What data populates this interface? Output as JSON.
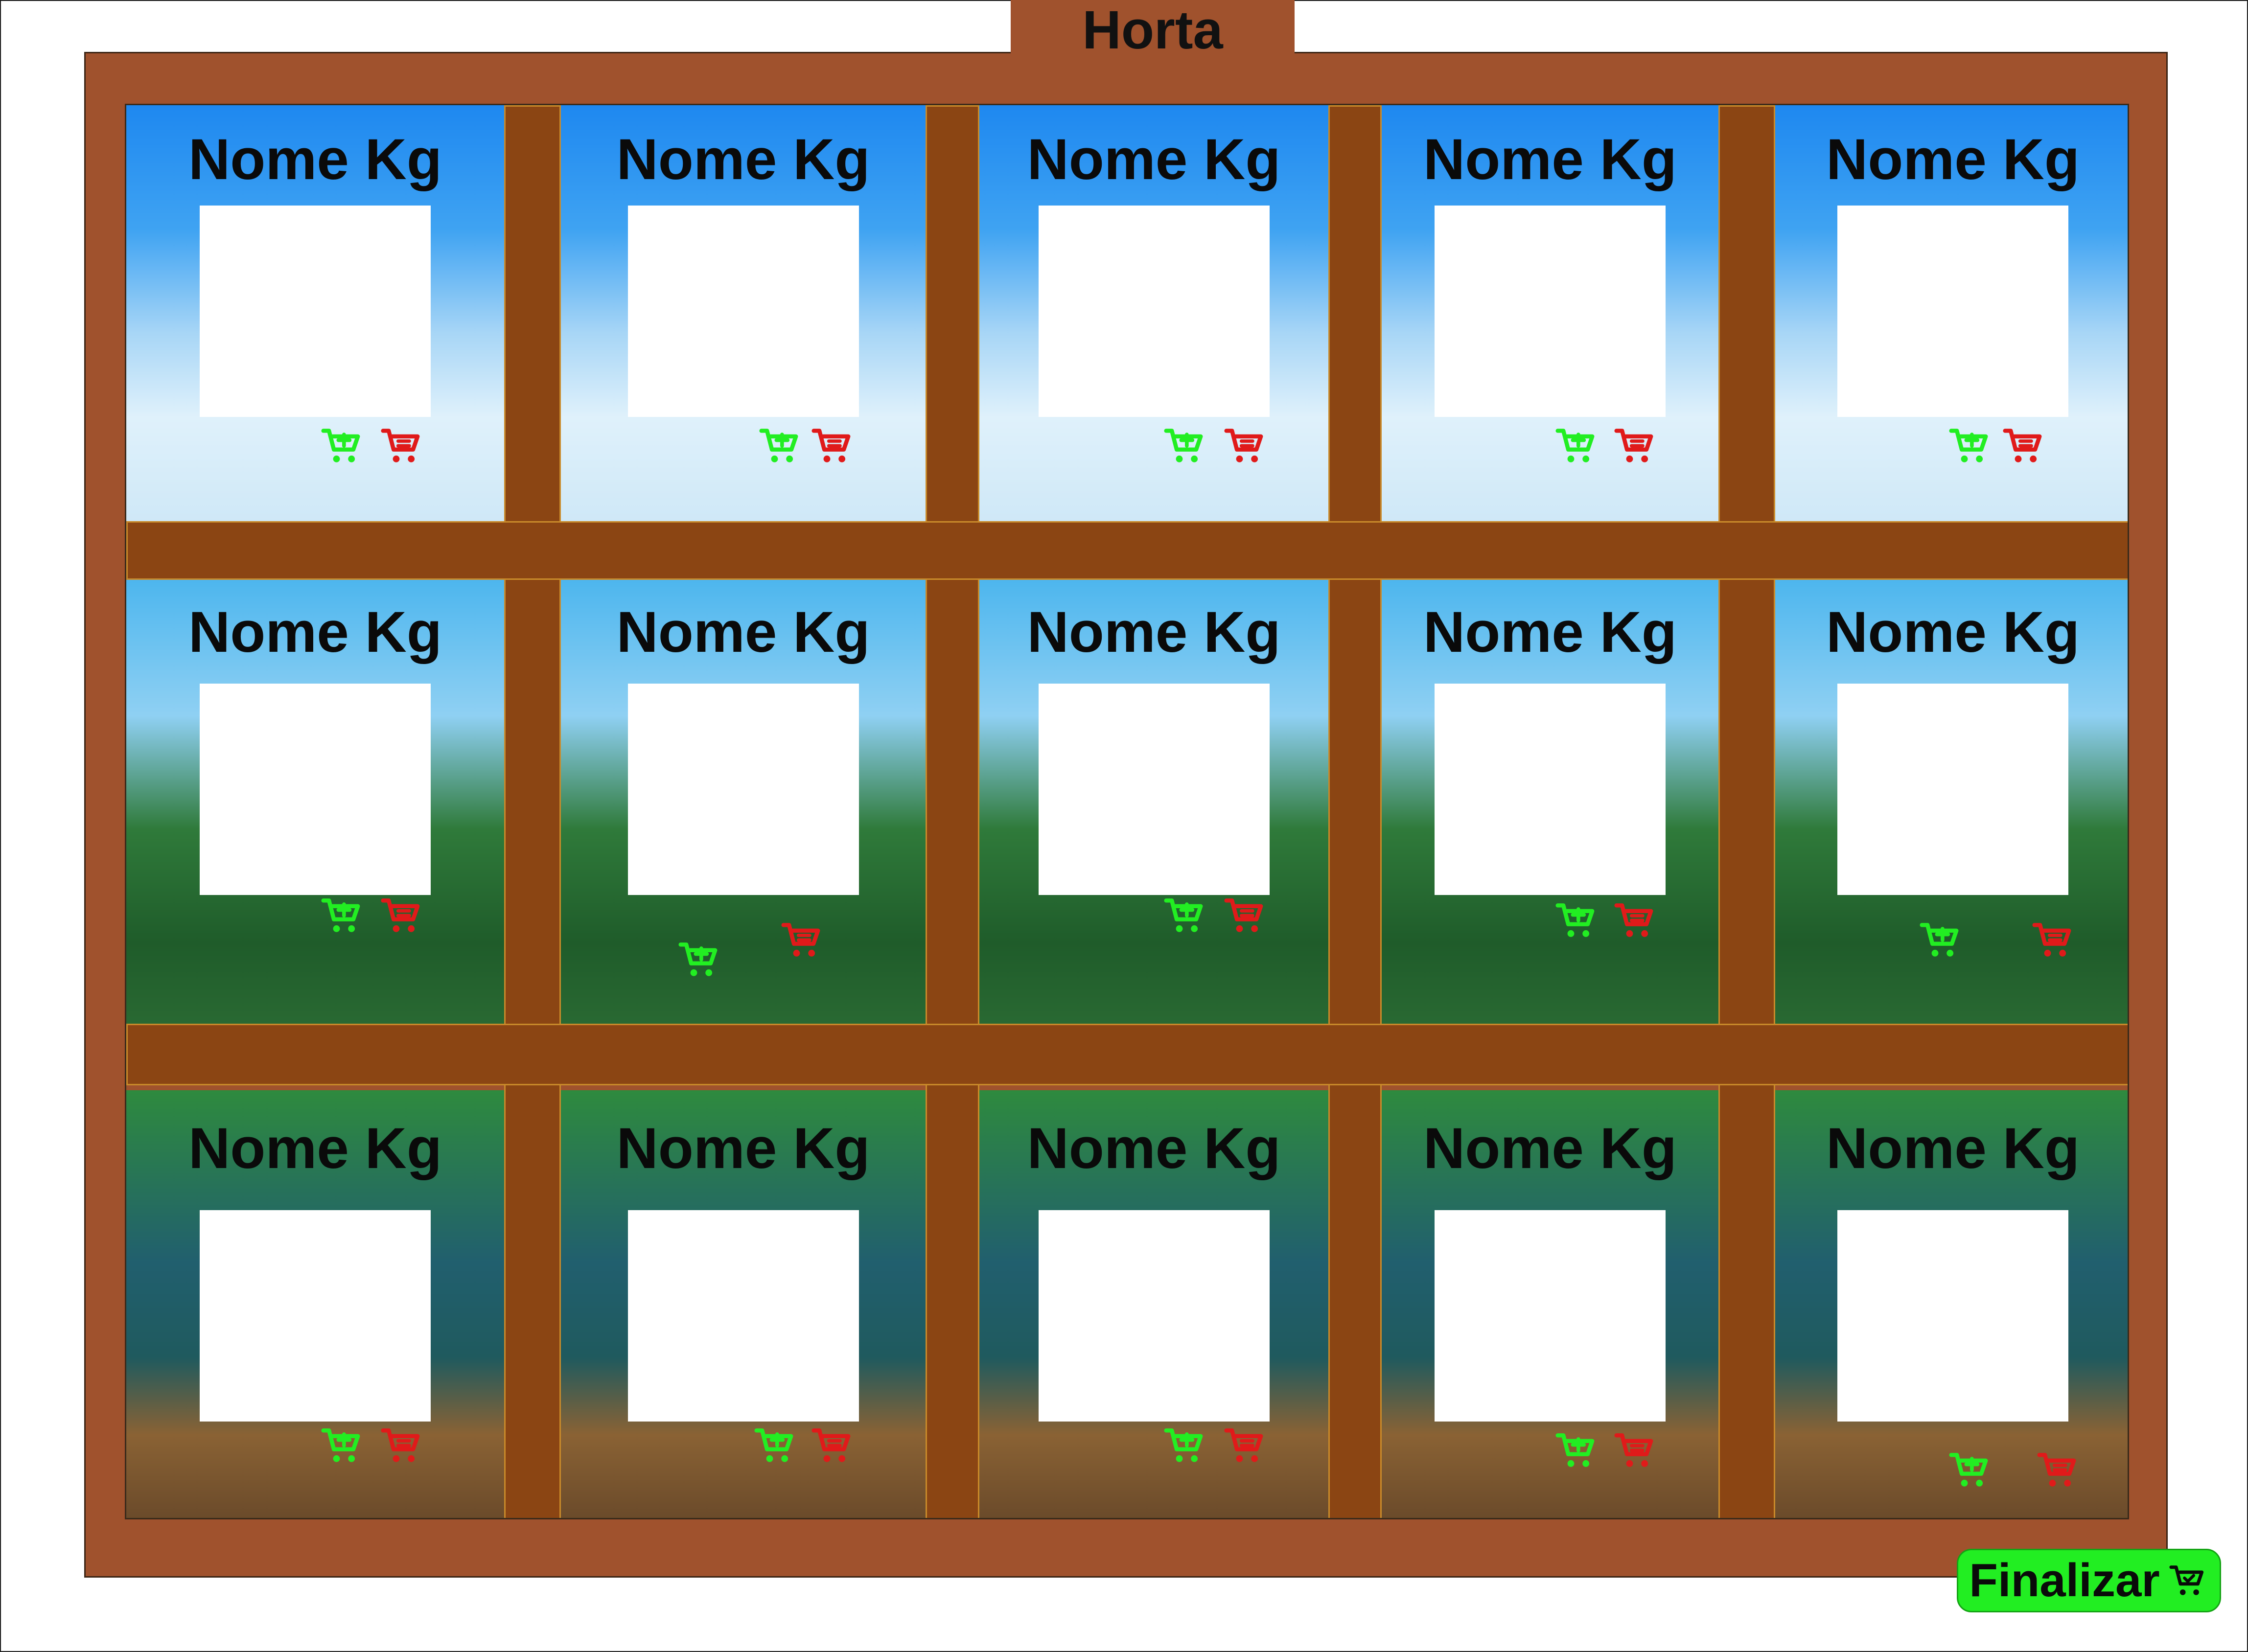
{
  "title": "Horta",
  "colors": {
    "frame": "#a0522d",
    "beam": "#8b4513",
    "beam_border": "#c98a2a",
    "add_cart": "#22ee22",
    "remove_cart": "#e01a1a",
    "finalize_bg": "#22ee22"
  },
  "cells": [
    {
      "label": "Nome Kg"
    },
    {
      "label": "Nome Kg"
    },
    {
      "label": "Nome Kg"
    },
    {
      "label": "Nome Kg"
    },
    {
      "label": "Nome Kg"
    },
    {
      "label": "Nome Kg"
    },
    {
      "label": "Nome Kg"
    },
    {
      "label": "Nome Kg"
    },
    {
      "label": "Nome Kg"
    },
    {
      "label": "Nome Kg"
    },
    {
      "label": "Nome Kg"
    },
    {
      "label": "Nome Kg"
    },
    {
      "label": "Nome Kg"
    },
    {
      "label": "Nome Kg"
    },
    {
      "label": "Nome Kg"
    }
  ],
  "icons": {
    "add": "cart-plus-icon",
    "remove": "cart-minus-icon",
    "finalize": "cart-check-icon"
  },
  "finalize_label": "Finalizar"
}
